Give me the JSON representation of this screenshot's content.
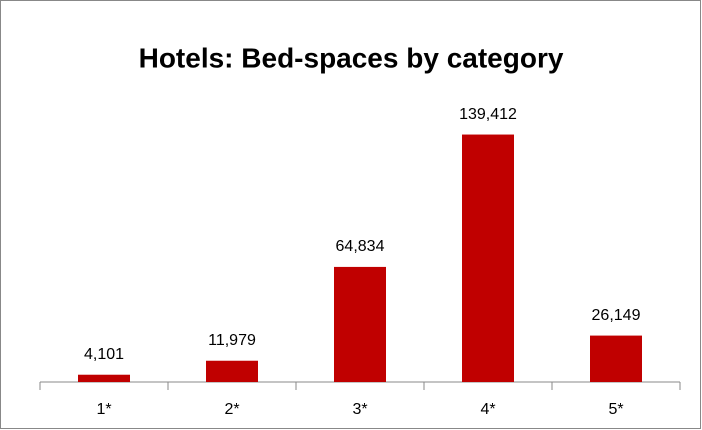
{
  "chart_data": {
    "type": "bar",
    "title": "Hotels: Bed-spaces by category",
    "categories": [
      "1*",
      "2*",
      "3*",
      "4*",
      "5*"
    ],
    "values": [
      4101,
      11979,
      64834,
      139412,
      26149
    ],
    "value_labels": [
      "4,101",
      "11,979",
      "64,834",
      "139,412",
      "26,149"
    ],
    "color": "#c00000",
    "ylim": [
      0,
      160000
    ]
  }
}
